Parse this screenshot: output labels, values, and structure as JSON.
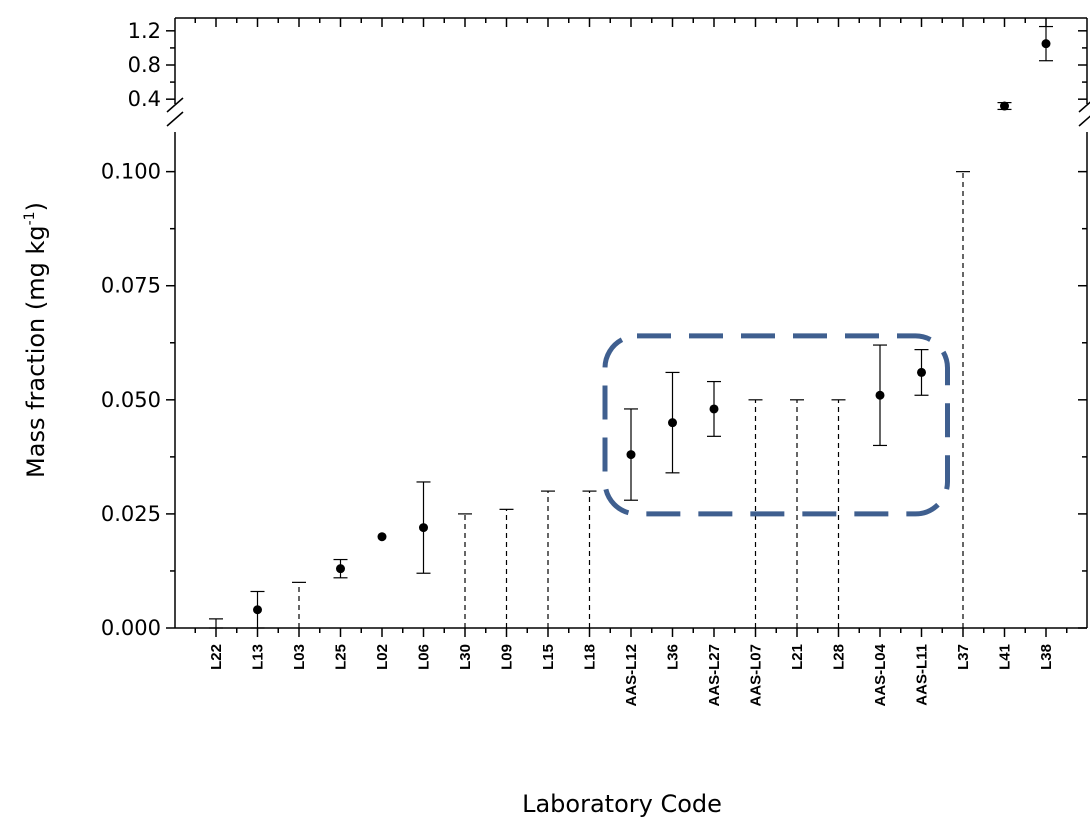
{
  "chart_data": {
    "type": "scatter",
    "title": "",
    "xlabel": "Laboratory Code",
    "ylabel": "Mass fraction (mg kg",
    "ylabel_sup": "-1",
    "ylabel_close": ")",
    "y_axis": {
      "broken": true,
      "lower_range": [
        0,
        0.11
      ],
      "lower_ticks": [
        "0.000",
        "0.025",
        "0.050",
        "0.075",
        "0.100"
      ],
      "upper_range": [
        0.25,
        1.35
      ],
      "upper_ticks": [
        "0.4",
        "0.8",
        "1.2"
      ]
    },
    "grid": false,
    "categories": [
      "L22",
      "L13",
      "L03",
      "L25",
      "L02",
      "L06",
      "L30",
      "L09",
      "L15",
      "L18",
      "AAS-L12",
      "L36",
      "AAS-L27",
      "AAS-L07",
      "L21",
      "L28",
      "AAS-L04",
      "AAS-L11",
      "L37",
      "L41",
      "L38"
    ],
    "points": [
      {
        "lab": "L22",
        "value": null,
        "err_low": 0,
        "err_high": 0.002,
        "limit": false
      },
      {
        "lab": "L13",
        "value": 0.004,
        "err_low": 0.0,
        "err_high": 0.008,
        "limit": false
      },
      {
        "lab": "L03",
        "value": null,
        "err_low": 0,
        "err_high": 0.01,
        "limit": true
      },
      {
        "lab": "L25",
        "value": 0.013,
        "err_low": 0.011,
        "err_high": 0.015,
        "limit": false
      },
      {
        "lab": "L02",
        "value": 0.02,
        "err_low": 0.02,
        "err_high": 0.02,
        "limit": false
      },
      {
        "lab": "L06",
        "value": 0.022,
        "err_low": 0.012,
        "err_high": 0.032,
        "limit": false
      },
      {
        "lab": "L30",
        "value": null,
        "err_low": 0,
        "err_high": 0.025,
        "limit": true
      },
      {
        "lab": "L09",
        "value": null,
        "err_low": 0,
        "err_high": 0.026,
        "limit": true
      },
      {
        "lab": "L15",
        "value": null,
        "err_low": 0,
        "err_high": 0.03,
        "limit": true
      },
      {
        "lab": "L18",
        "value": null,
        "err_low": 0,
        "err_high": 0.03,
        "limit": true
      },
      {
        "lab": "AAS-L12",
        "value": 0.038,
        "err_low": 0.028,
        "err_high": 0.048,
        "limit": false
      },
      {
        "lab": "L36",
        "value": 0.045,
        "err_low": 0.034,
        "err_high": 0.056,
        "limit": false
      },
      {
        "lab": "AAS-L27",
        "value": 0.048,
        "err_low": 0.042,
        "err_high": 0.054,
        "limit": false
      },
      {
        "lab": "AAS-L07",
        "value": null,
        "err_low": 0,
        "err_high": 0.05,
        "limit": true
      },
      {
        "lab": "L21",
        "value": null,
        "err_low": 0,
        "err_high": 0.05,
        "limit": true
      },
      {
        "lab": "L28",
        "value": null,
        "err_low": 0,
        "err_high": 0.05,
        "limit": true
      },
      {
        "lab": "AAS-L04",
        "value": 0.051,
        "err_low": 0.04,
        "err_high": 0.062,
        "limit": false
      },
      {
        "lab": "AAS-L11",
        "value": 0.056,
        "err_low": 0.051,
        "err_high": 0.061,
        "limit": false
      },
      {
        "lab": "L37",
        "value": null,
        "err_low": 0,
        "err_high": 0.1,
        "limit": true
      },
      {
        "lab": "L41",
        "value": 0.32,
        "err_low": 0.28,
        "err_high": 0.36,
        "limit": false
      },
      {
        "lab": "L38",
        "value": 1.05,
        "err_low": 0.85,
        "err_high": 1.25,
        "limit": false
      }
    ],
    "highlight": {
      "from": "AAS-L12",
      "to": "AAS-L11",
      "color": "#3F5F8F",
      "style": "dashed rounded rectangle"
    },
    "colors": {
      "points": "#000000",
      "highlight": "#3F5F8F"
    }
  }
}
